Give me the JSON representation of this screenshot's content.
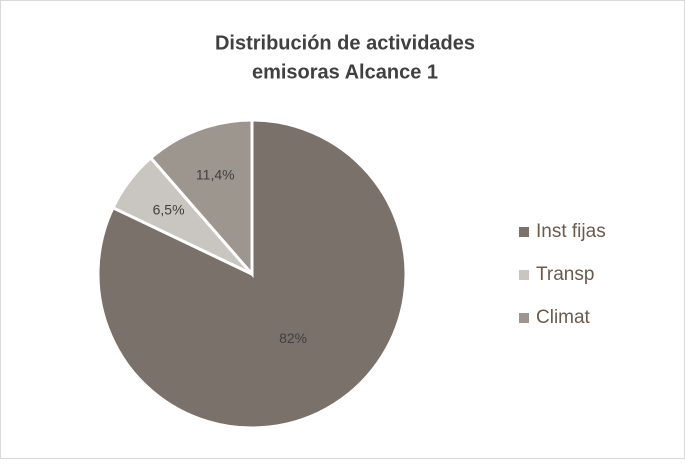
{
  "chart_data": {
    "type": "pie",
    "title": [
      "Distribución de actividades",
      "emisoras Alcance 1"
    ],
    "categories": [
      "Inst fijas",
      "Transp",
      "Climat"
    ],
    "values": [
      82,
      6.5,
      11.4
    ],
    "value_labels": [
      "82%",
      "6,5%",
      "11,4%"
    ],
    "colors": [
      "#7a716b",
      "#c9c5c1",
      "#9d968f"
    ],
    "legend": "right"
  }
}
